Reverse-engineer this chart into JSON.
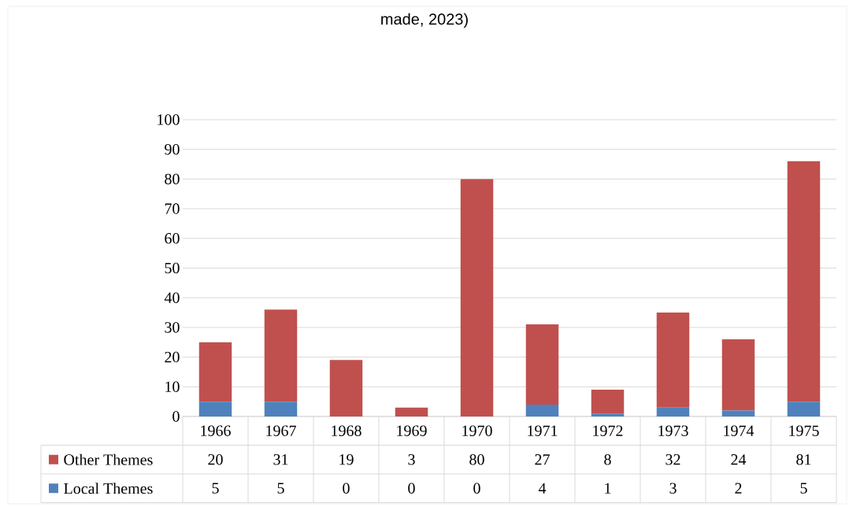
{
  "chart_data": {
    "type": "bar",
    "title": "made, 2023)",
    "stacked": true,
    "data_labels": true,
    "legend": "bottom",
    "grid": "y",
    "categories": [
      "1966",
      "1967",
      "1968",
      "1969",
      "1970",
      "1971",
      "1972",
      "1973",
      "1974",
      "1975"
    ],
    "series": [
      {
        "name": "Local Themes",
        "color": "#4f81bd",
        "values": [
          5,
          5,
          0,
          0,
          0,
          4,
          1,
          3,
          2,
          5
        ]
      },
      {
        "name": "Other Themes",
        "color": "#c0504d",
        "values": [
          20,
          31,
          19,
          3,
          80,
          27,
          8,
          32,
          24,
          81
        ]
      }
    ],
    "ylim": [
      0,
      100
    ],
    "yticks": [
      0,
      10,
      20,
      30,
      40,
      50,
      60,
      70,
      80,
      90,
      100
    ]
  }
}
